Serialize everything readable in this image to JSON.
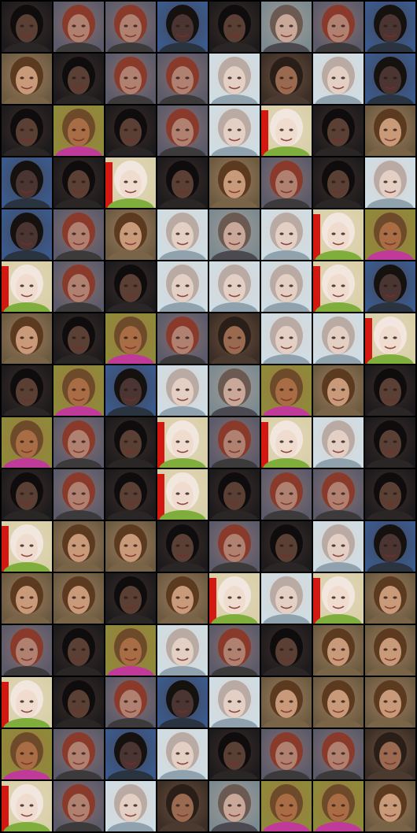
{
  "grid": {
    "rows": 16,
    "cols": 8,
    "background": "#000000",
    "palettes": {
      "dark": {
        "bg": "#1c1a1c",
        "skin": "#5a3f34",
        "hair": "#0f0c0d",
        "shirt": "#2a2626"
      },
      "tan": {
        "bg": "#6b5a40",
        "skin": "#c89a7a",
        "hair": "#5b3a20",
        "shirt": "#7a6448"
      },
      "grey": {
        "bg": "#7a8a90",
        "skin": "#c9a899",
        "hair": "#6b5a52",
        "shirt": "#4a4a50"
      },
      "light": {
        "bg": "#cfdde4",
        "skin": "#e4cfc4",
        "hair": "#b9aba4",
        "shirt": "#8fa2ae"
      },
      "red": {
        "bg": "#d8d0a8",
        "skin": "#f0dccf",
        "hair": "#f2e7df",
        "shirt": "#7fae3c",
        "stripe": "#d21810"
      },
      "yellow": {
        "bg": "#8e8a3a",
        "skin": "#a86d44",
        "hair": "#6d4a2a",
        "shirt": "#c03a9a"
      },
      "blue": {
        "bg": "#3a5a8c",
        "skin": "#4a3532",
        "hair": "#14110f",
        "shirt": "#2a3340"
      },
      "mix": {
        "bg": "#5a5a6a",
        "skin": "#b08070",
        "hair": "#8a3a2a",
        "shirt": "#3c3a3a"
      },
      "brown": {
        "bg": "#3a2e26",
        "skin": "#9a6a50",
        "hair": "#2a1e18",
        "shirt": "#4a3a30"
      }
    },
    "cells": [
      [
        "dark",
        "mix",
        "mix",
        "blue",
        "dark",
        "grey",
        "mix",
        "blue"
      ],
      [
        "tan",
        "dark",
        "mix",
        "mix",
        "light",
        "brown",
        "light",
        "blue"
      ],
      [
        "dark",
        "yellow",
        "dark",
        "mix",
        "light",
        "red",
        "dark",
        "tan"
      ],
      [
        "blue",
        "dark",
        "red",
        "dark",
        "tan",
        "mix",
        "dark",
        "light"
      ],
      [
        "blue",
        "mix",
        "tan",
        "light",
        "grey",
        "light",
        "red",
        "yellow"
      ],
      [
        "red",
        "mix",
        "dark",
        "light",
        "light",
        "light",
        "red",
        "blue"
      ],
      [
        "tan",
        "dark",
        "yellow",
        "mix",
        "brown",
        "light",
        "light",
        "red"
      ],
      [
        "dark",
        "yellow",
        "blue",
        "light",
        "grey",
        "yellow",
        "tan",
        "dark"
      ],
      [
        "yellow",
        "mix",
        "dark",
        "red",
        "mix",
        "red",
        "light",
        "dark"
      ],
      [
        "dark",
        "mix",
        "dark",
        "red",
        "dark",
        "mix",
        "mix",
        "dark"
      ],
      [
        "red",
        "tan",
        "tan",
        "dark",
        "mix",
        "dark",
        "light",
        "blue"
      ],
      [
        "tan",
        "tan",
        "dark",
        "tan",
        "red",
        "light",
        "red",
        "tan"
      ],
      [
        "mix",
        "dark",
        "yellow",
        "light",
        "mix",
        "dark",
        "tan",
        "tan"
      ],
      [
        "red",
        "dark",
        "mix",
        "blue",
        "light",
        "tan",
        "tan",
        "tan"
      ],
      [
        "yellow",
        "mix",
        "blue",
        "light",
        "dark",
        "mix",
        "mix",
        "brown"
      ],
      [
        "red",
        "mix",
        "light",
        "brown",
        "grey",
        "yellow",
        "yellow",
        "tan"
      ]
    ]
  }
}
